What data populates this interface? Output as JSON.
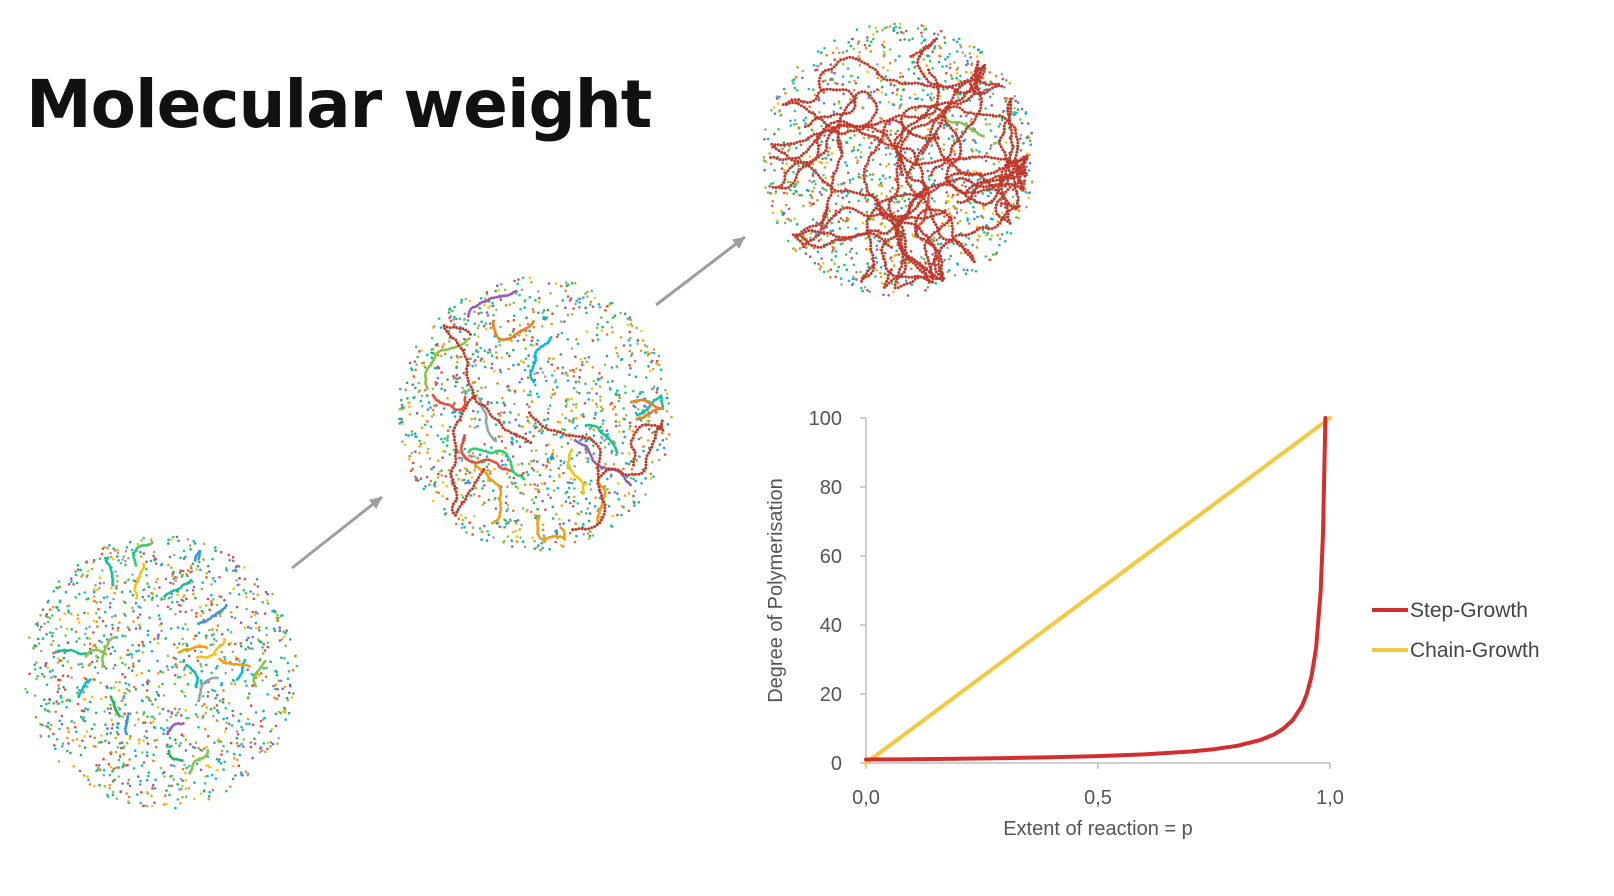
{
  "slide": {
    "title": "Molecular weight"
  },
  "illustration": {
    "stages": [
      "monomers-and-short-oligomers",
      "medium-chains",
      "long-polymer-chains"
    ],
    "arrow_color": "#9e9e9e",
    "dot_colors": [
      "#e74c3c",
      "#f39c12",
      "#f1c40f",
      "#2ecc71",
      "#27ae60",
      "#1abc9c",
      "#3498db",
      "#9b59b6",
      "#e67e22",
      "#95a5a6",
      "#8bc34a",
      "#00bcd4"
    ],
    "polymer_color": "#c0392b"
  },
  "chart_data": {
    "type": "line",
    "title": "",
    "xlabel": "Extent of reaction = p",
    "ylabel": "Degree of Polymerisation",
    "xlim": [
      0,
      1.0
    ],
    "ylim": [
      0,
      100
    ],
    "x_ticks": [
      0,
      0.5,
      1.0
    ],
    "x_tick_labels": [
      "0,0",
      "0,5",
      "1,0"
    ],
    "y_ticks": [
      0,
      20,
      40,
      60,
      80,
      100
    ],
    "y_tick_labels": [
      "0",
      "20",
      "40",
      "60",
      "80",
      "100"
    ],
    "grid": false,
    "legend_position": "right",
    "series": [
      {
        "name": "Step-Growth",
        "color": "#d32f2f",
        "x": [
          0,
          0.1,
          0.2,
          0.3,
          0.4,
          0.5,
          0.6,
          0.7,
          0.75,
          0.8,
          0.85,
          0.88,
          0.9,
          0.92,
          0.94,
          0.95,
          0.96,
          0.97,
          0.98,
          0.985,
          0.99
        ],
        "values": [
          1,
          1.11,
          1.25,
          1.43,
          1.67,
          2,
          2.5,
          3.33,
          4,
          5,
          6.67,
          8.33,
          10,
          12.5,
          16.67,
          20,
          25,
          33.33,
          50,
          66.67,
          100
        ]
      },
      {
        "name": "Chain-Growth",
        "color": "#f5c842",
        "x": [
          0,
          1.0
        ],
        "values": [
          0,
          100
        ]
      }
    ]
  }
}
